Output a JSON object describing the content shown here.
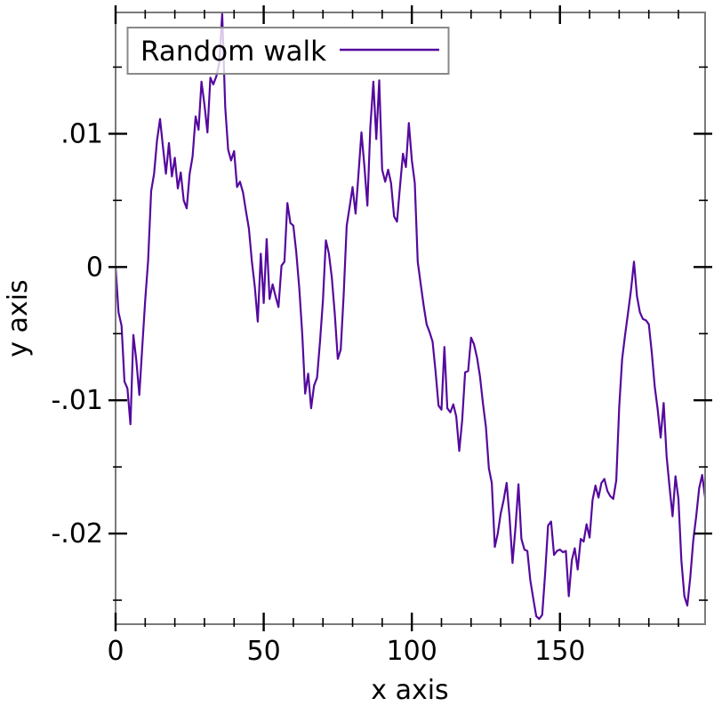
{
  "page": {
    "background": "#ffffff"
  },
  "style": {
    "frame_color": "#7a7a7a",
    "tick_color": "#000000",
    "text_color": "#000000",
    "line_color": "#55099e",
    "legend_fill": "rgba(255,255,255,0.78)",
    "legend_border": "#888888"
  },
  "chart_data": {
    "type": "line",
    "title": "",
    "xlabel": "x axis",
    "ylabel": "y axis",
    "grid": false,
    "legend": {
      "position": "top-left",
      "entries": [
        {
          "label": "Random walk",
          "color": "#55099e"
        }
      ]
    },
    "xlim": [
      0,
      199
    ],
    "ylim": [
      -0.0268,
      0.0191
    ],
    "x_ticks_major": [
      {
        "value": 0,
        "label": "0"
      },
      {
        "value": 50,
        "label": "50"
      },
      {
        "value": 100,
        "label": "100"
      },
      {
        "value": 150,
        "label": "150"
      }
    ],
    "x_ticks_minor": [
      10,
      20,
      30,
      40,
      60,
      70,
      80,
      90,
      110,
      120,
      130,
      140,
      160,
      170,
      180,
      190
    ],
    "y_ticks_major": [
      {
        "value": 0.01,
        "label": ".01"
      },
      {
        "value": 0,
        "label": "0"
      },
      {
        "value": -0.01,
        "label": "-.01"
      },
      {
        "value": -0.02,
        "label": "-.02"
      }
    ],
    "y_ticks_minor": [
      0.015,
      0.005,
      -0.005,
      -0.015,
      -0.025
    ],
    "series": [
      {
        "name": "Random walk",
        "color": "#55099e",
        "x_start": 0,
        "x_step": 1,
        "values": [
          0.0,
          -0.0034,
          -0.0044,
          -0.0086,
          -0.0091,
          -0.0118,
          -0.0051,
          -0.007,
          -0.0096,
          -0.006,
          -0.0025,
          0.0005,
          0.0057,
          0.007,
          0.0095,
          0.0111,
          0.009,
          0.007,
          0.0093,
          0.0068,
          0.0082,
          0.0059,
          0.0071,
          0.005,
          0.0044,
          0.007,
          0.0083,
          0.0113,
          0.0103,
          0.0139,
          0.0122,
          0.0101,
          0.0142,
          0.0137,
          0.0143,
          0.0153,
          0.019,
          0.012,
          0.0088,
          0.008,
          0.0087,
          0.006,
          0.0064,
          0.0056,
          0.0042,
          0.0029,
          0.0004,
          -0.0015,
          -0.0041,
          0.001,
          -0.0027,
          0.0021,
          -0.0024,
          -0.0013,
          -0.0022,
          -0.003,
          0.0001,
          0.0004,
          0.0048,
          0.0033,
          0.0031,
          0.0011,
          -0.0016,
          -0.005,
          -0.0095,
          -0.008,
          -0.0106,
          -0.0089,
          -0.0083,
          -0.0056,
          -0.0025,
          0.002,
          0.001,
          -0.0008,
          -0.0035,
          -0.0069,
          -0.0062,
          -0.0021,
          0.0031,
          0.0045,
          0.006,
          0.004,
          0.007,
          0.0101,
          0.0075,
          0.0046,
          0.0105,
          0.0139,
          0.0096,
          0.014,
          0.0073,
          0.0064,
          0.0073,
          0.0063,
          0.0038,
          0.0034,
          0.006,
          0.0085,
          0.0075,
          0.0108,
          0.008,
          0.0063,
          0.0004,
          -0.0013,
          -0.0029,
          -0.0043,
          -0.0049,
          -0.0056,
          -0.0078,
          -0.0104,
          -0.0107,
          -0.006,
          -0.0106,
          -0.0109,
          -0.0103,
          -0.0112,
          -0.0138,
          -0.0115,
          -0.0079,
          -0.0078,
          -0.0053,
          -0.0058,
          -0.0068,
          -0.0082,
          -0.0102,
          -0.012,
          -0.0151,
          -0.0162,
          -0.021,
          -0.02,
          -0.0185,
          -0.0175,
          -0.0162,
          -0.0188,
          -0.0222,
          -0.0195,
          -0.0163,
          -0.0204,
          -0.0212,
          -0.0213,
          -0.0235,
          -0.0249,
          -0.0262,
          -0.0264,
          -0.0261,
          -0.023,
          -0.0194,
          -0.0191,
          -0.0216,
          -0.0213,
          -0.0212,
          -0.0214,
          -0.0213,
          -0.0247,
          -0.022,
          -0.0211,
          -0.0227,
          -0.0204,
          -0.0206,
          -0.0193,
          -0.0203,
          -0.0175,
          -0.0164,
          -0.0173,
          -0.0162,
          -0.0159,
          -0.0168,
          -0.0172,
          -0.0174,
          -0.016,
          -0.0105,
          -0.0069,
          -0.0051,
          -0.0034,
          -0.0017,
          0.0004,
          -0.0022,
          -0.0034,
          -0.0039,
          -0.004,
          -0.0043,
          -0.0064,
          -0.009,
          -0.0107,
          -0.0128,
          -0.0102,
          -0.0142,
          -0.0165,
          -0.0187,
          -0.0157,
          -0.0174,
          -0.022,
          -0.0247,
          -0.0254,
          -0.0233,
          -0.0205,
          -0.0187,
          -0.0166,
          -0.0156,
          -0.0173
        ]
      }
    ]
  }
}
